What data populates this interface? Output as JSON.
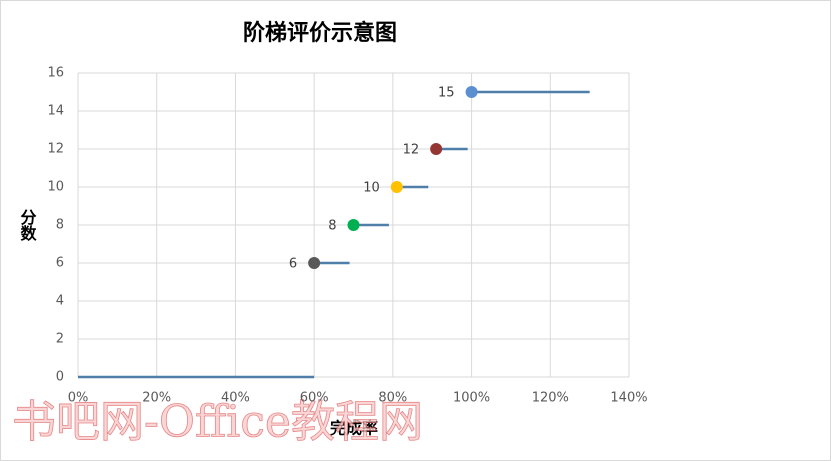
{
  "chart_data": {
    "type": "scatter",
    "title": "阶梯评价示意图",
    "x_label": "完成率",
    "y_label": "分数",
    "x": [
      100,
      91,
      81,
      70,
      60
    ],
    "values": [
      15,
      12,
      10,
      8,
      6
    ],
    "colors": [
      "#5b8fd0",
      "#943634",
      "#ffc000",
      "#00b050",
      "#595959"
    ],
    "steps": [
      {
        "x": [
          0,
          60
        ],
        "values": [
          0,
          0
        ]
      },
      {
        "x": [
          60,
          69
        ],
        "values": [
          6,
          6
        ]
      },
      {
        "x": [
          70,
          79
        ],
        "values": [
          8,
          8
        ]
      },
      {
        "x": [
          81,
          89
        ],
        "values": [
          10,
          10
        ]
      },
      {
        "x": [
          91,
          99
        ],
        "values": [
          12,
          12
        ]
      },
      {
        "x": [
          100,
          130
        ],
        "values": [
          15,
          15
        ]
      }
    ],
    "line_color": "#4f7ea8",
    "xlim": [
      0,
      140
    ],
    "xticks": [
      {
        "value": 0,
        "label": "0%"
      },
      {
        "value": 20,
        "label": "20%"
      },
      {
        "value": 40,
        "label": "40%"
      },
      {
        "value": 60,
        "label": "60%"
      },
      {
        "value": 80,
        "label": "80%"
      },
      {
        "value": 100,
        "label": "100%"
      },
      {
        "value": 120,
        "label": "120%"
      },
      {
        "value": 140,
        "label": "140%"
      }
    ],
    "ylim": [
      0,
      16
    ],
    "yticks": [
      0,
      2,
      4,
      6,
      8,
      10,
      12,
      14,
      16
    ],
    "grid": true,
    "watermark": "书吧网-Office教程网"
  }
}
